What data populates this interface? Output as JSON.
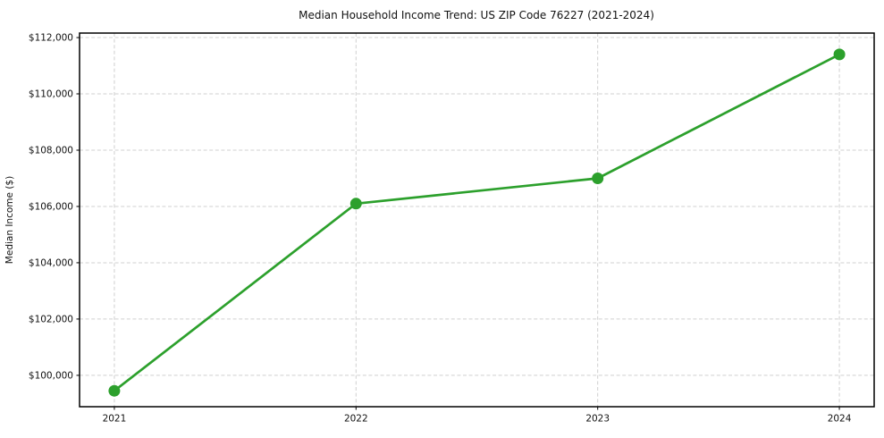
{
  "chart_data": {
    "type": "line",
    "title": "Median Household Income Trend: US ZIP Code 76227 (2021-2024)",
    "xlabel": "",
    "ylabel": "Median Income ($)",
    "x": [
      2021,
      2022,
      2023,
      2024
    ],
    "series": [
      {
        "name": "Median Household Income",
        "values": [
          99450,
          106100,
          107000,
          111400
        ]
      }
    ],
    "x_tick_labels": [
      "2021",
      "2022",
      "2023",
      "2024"
    ],
    "y_tick_values": [
      100000,
      102000,
      104000,
      106000,
      108000,
      110000,
      112000
    ],
    "y_tick_labels": [
      "$100,000",
      "$102,000",
      "$104,000",
      "$106,000",
      "$108,000",
      "$110,000",
      "$112,000"
    ],
    "xlim": [
      2020.856,
      2024.144
    ],
    "ylim": [
      98885,
      112160
    ],
    "grid": true,
    "grid_style": "dashed",
    "legend_position": "none",
    "line_color": "#2ca02c",
    "marker_color": "#2ca02c",
    "grid_color": "#d0d0d0",
    "axis_color": "#000000",
    "marker_shape": "circle"
  }
}
